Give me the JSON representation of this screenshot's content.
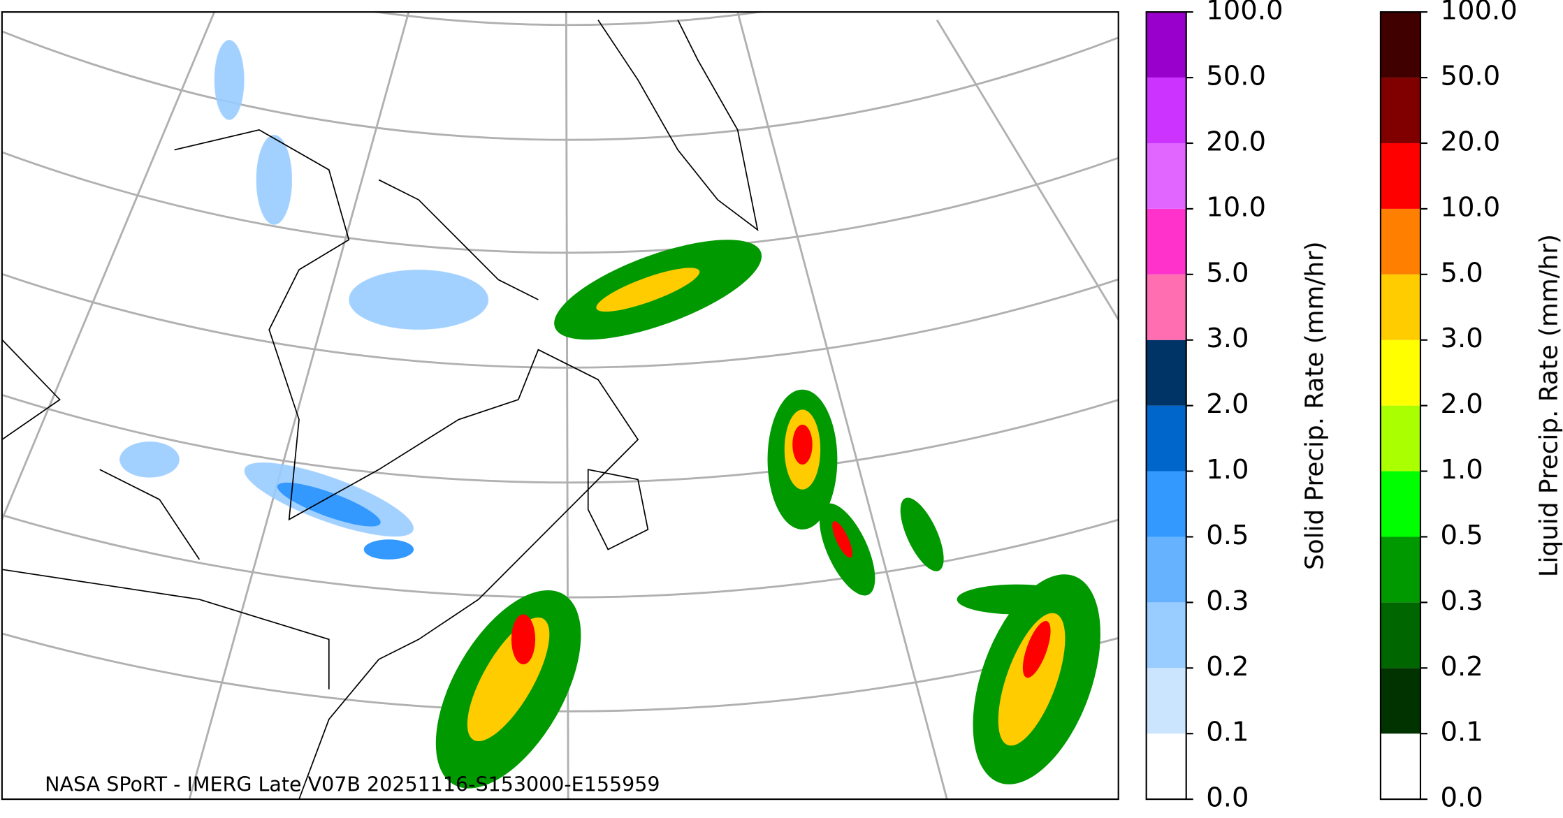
{
  "map": {
    "caption": "NASA SPoRT - IMERG Late V07B 20251116-S153000-E155959"
  },
  "colorbars": [
    {
      "label": "Solid Precip. Rate (mm/hr)",
      "ticks": [
        "0.0",
        "0.1",
        "0.2",
        "0.3",
        "0.5",
        "1.0",
        "2.0",
        "3.0",
        "5.0",
        "10.0",
        "20.0",
        "50.0",
        "100.0"
      ],
      "colors": [
        "#ffffff",
        "#cce5ff",
        "#99ccff",
        "#66b2ff",
        "#3399ff",
        "#0066cc",
        "#003366",
        "#ff6eb0",
        "#ff33cc",
        "#e066ff",
        "#cc33ff",
        "#9900cc"
      ]
    },
    {
      "label": "Liquid Precip. Rate (mm/hr)",
      "ticks": [
        "0.0",
        "0.1",
        "0.2",
        "0.3",
        "0.5",
        "1.0",
        "2.0",
        "3.0",
        "5.0",
        "10.0",
        "20.0",
        "50.0",
        "100.0"
      ],
      "colors": [
        "#ffffff",
        "#003300",
        "#006600",
        "#009900",
        "#00ff00",
        "#aaff00",
        "#ffff00",
        "#ffcc00",
        "#ff8000",
        "#ff0000",
        "#800000",
        "#400000"
      ]
    }
  ]
}
